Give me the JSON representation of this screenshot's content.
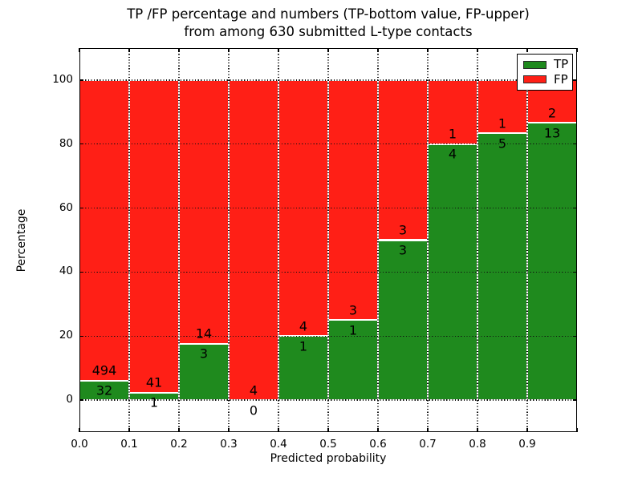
{
  "title": {
    "line1": "TP /FP percentage and numbers (TP-bottom value, FP-upper)",
    "line2": "from among 630 submitted L-type contacts"
  },
  "axes": {
    "xlabel": "Predicted probability",
    "ylabel": "Percentage",
    "xtick_labels": [
      "0.0",
      "0.1",
      "0.2",
      "0.3",
      "0.4",
      "0.5",
      "0.6",
      "0.7",
      "0.8",
      "0.9"
    ],
    "ytick_labels": [
      "0",
      "20",
      "40",
      "60",
      "80",
      "100"
    ],
    "ytick_values": [
      0,
      20,
      40,
      60,
      80,
      100
    ],
    "xlim": [
      0.0,
      1.0
    ],
    "ylim": [
      -10,
      110
    ],
    "grid": "dotted black, both axes"
  },
  "legend": {
    "position": "upper right",
    "items": [
      {
        "label": "TP",
        "color": "#1f8a1e"
      },
      {
        "label": "FP",
        "color": "#ff1f16"
      }
    ]
  },
  "colors": {
    "tp_green": "#1f8a1e",
    "fp_red": "#ff1f16",
    "bar_edge": "#ffffff",
    "text": "#000000"
  },
  "chart_data": {
    "type": "bar",
    "stacked": true,
    "normalized_to_percent": 100,
    "total_submitted": 630,
    "bin_width": 0.1,
    "title": "TP /FP percentage and numbers (TP-bottom value, FP-upper) from among 630 submitted L-type contacts",
    "xlabel": "Predicted probability",
    "ylabel": "Percentage",
    "series_names": [
      "TP",
      "FP"
    ],
    "bins": [
      {
        "range": "0.0-0.1",
        "tp": 32,
        "fp": 494,
        "tp_pct": 6.08,
        "fp_pct": 93.92
      },
      {
        "range": "0.1-0.2",
        "tp": 1,
        "fp": 41,
        "tp_pct": 2.38,
        "fp_pct": 97.62
      },
      {
        "range": "0.2-0.3",
        "tp": 3,
        "fp": 14,
        "tp_pct": 17.65,
        "fp_pct": 82.35
      },
      {
        "range": "0.3-0.4",
        "tp": 0,
        "fp": 4,
        "tp_pct": 0,
        "fp_pct": 100
      },
      {
        "range": "0.4-0.5",
        "tp": 1,
        "fp": 4,
        "tp_pct": 20,
        "fp_pct": 80
      },
      {
        "range": "0.5-0.6",
        "tp": 1,
        "fp": 3,
        "tp_pct": 25,
        "fp_pct": 75
      },
      {
        "range": "0.6-0.7",
        "tp": 3,
        "fp": 3,
        "tp_pct": 50,
        "fp_pct": 50
      },
      {
        "range": "0.7-0.8",
        "tp": 4,
        "fp": 1,
        "tp_pct": 80,
        "fp_pct": 20
      },
      {
        "range": "0.8-0.9",
        "tp": 5,
        "fp": 1,
        "tp_pct": 83.33,
        "fp_pct": 16.67
      },
      {
        "range": "0.9-1.0",
        "tp": 13,
        "fp": 2,
        "tp_pct": 86.67,
        "fp_pct": 13.33
      }
    ]
  }
}
